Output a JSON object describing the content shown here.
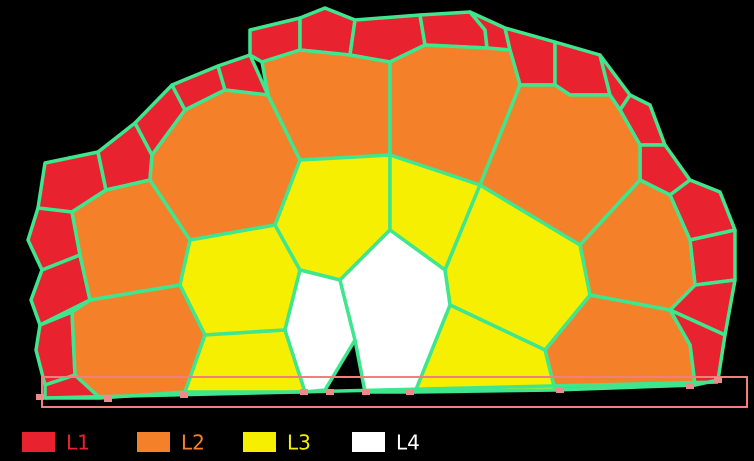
{
  "legend": [
    {
      "label": "L1",
      "color": "#e8222e"
    },
    {
      "label": "L2",
      "color": "#f5802a"
    },
    {
      "label": "L3",
      "color": "#f7ef02"
    },
    {
      "label": "L4",
      "color": "#ffffff"
    }
  ]
}
